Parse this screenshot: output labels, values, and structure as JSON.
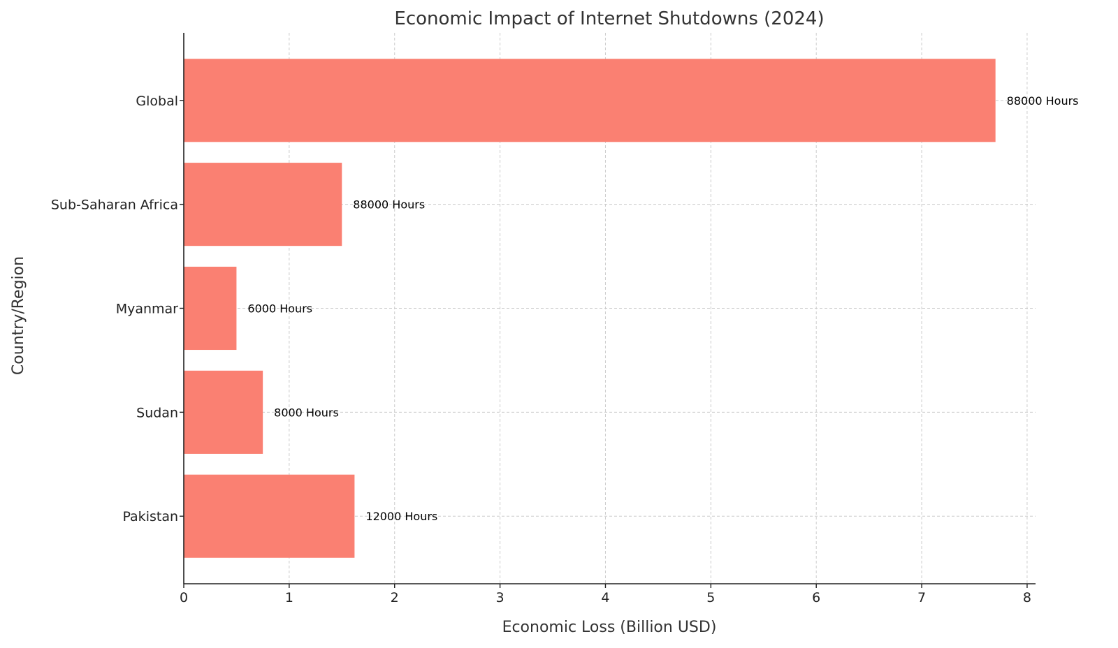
{
  "chart_data": {
    "type": "bar",
    "orientation": "horizontal",
    "title": "Economic Impact of Internet Shutdowns (2024)",
    "xlabel": "Economic Loss (Billion USD)",
    "ylabel": "Country/Region",
    "xlim": [
      0,
      8.08
    ],
    "xticks": [
      0,
      1,
      2,
      3,
      4,
      5,
      6,
      7,
      8
    ],
    "grid": true,
    "bar_color": "#FA8072",
    "categories": [
      "Global",
      "Sub-Saharan Africa",
      "Myanmar",
      "Sudan",
      "Pakistan"
    ],
    "values": [
      7.7,
      1.5,
      0.5,
      0.75,
      1.62
    ],
    "labels": [
      "88000 Hours",
      "88000 Hours",
      "6000 Hours",
      "8000 Hours",
      "12000 Hours"
    ]
  }
}
